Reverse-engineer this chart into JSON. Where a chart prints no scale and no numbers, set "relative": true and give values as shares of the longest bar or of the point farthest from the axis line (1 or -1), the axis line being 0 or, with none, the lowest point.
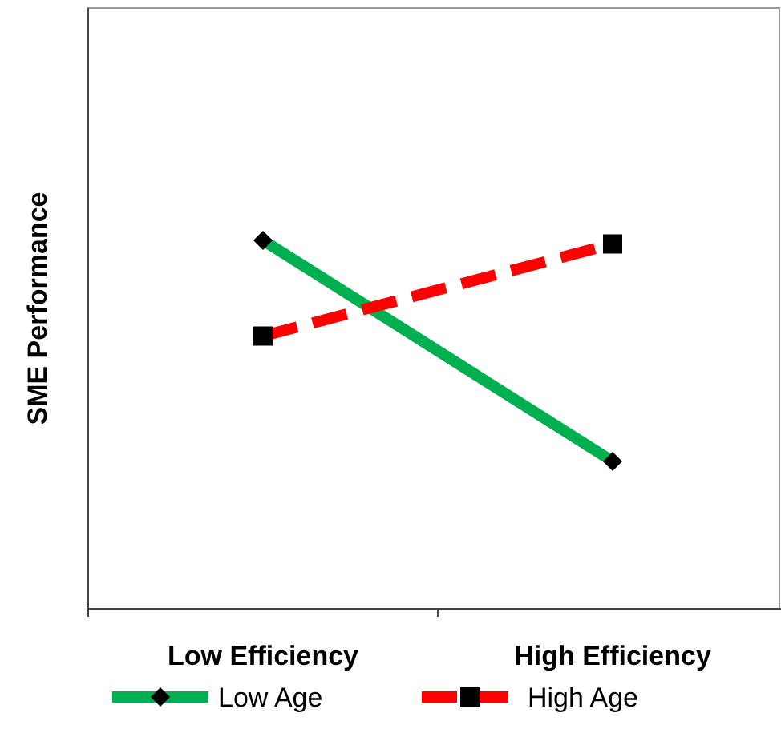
{
  "chart_data": {
    "type": "line",
    "relative": true,
    "ylabel": "SME Performance",
    "categories": [
      "Low Efficiency",
      "High Efficiency"
    ],
    "legend": "bottom",
    "series": [
      {
        "name": "Low Age",
        "color": "#00b050",
        "values": [
          1,
          0.4
        ],
        "marker": "diamond",
        "line_style": "solid"
      },
      {
        "name": "High Age",
        "color": "#ff0000",
        "values": [
          0.74,
          0.99
        ],
        "marker": "square",
        "line_style": "dashed"
      }
    ]
  }
}
